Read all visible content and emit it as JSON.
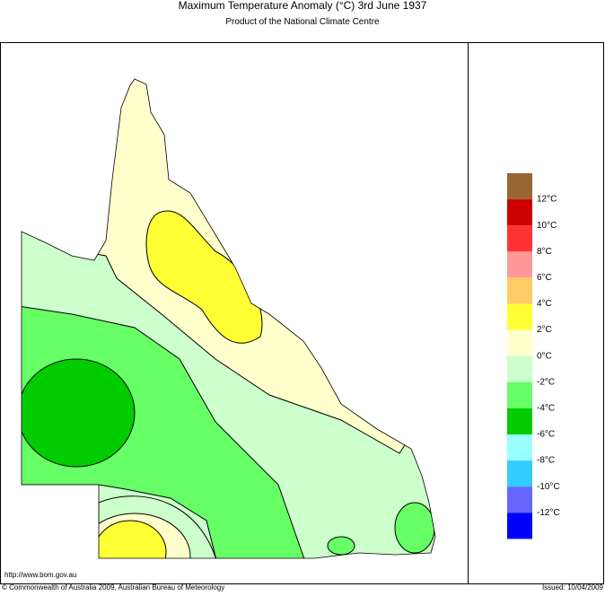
{
  "header": {
    "title": "Maximum Temperature Anomaly (°C)  3rd June 1937",
    "subtitle": "Product of the National Climate Centre"
  },
  "legend": {
    "colors": [
      "#996633",
      "#cc0000",
      "#ff3333",
      "#ff9999",
      "#ffcc66",
      "#ffff33",
      "#ffffcc",
      "#ccffcc",
      "#66ff66",
      "#00cc00",
      "#99ffff",
      "#33ccff",
      "#6666ff",
      "#0000ff"
    ],
    "labels": [
      "12°C",
      "10°C",
      "8°C",
      "6°C",
      "4°C",
      "2°C",
      "0°C",
      "-2°C",
      "-4°C",
      "-6°C",
      "-8°C",
      "-10°C",
      "-12°C"
    ]
  },
  "footer": {
    "url": "http://www.bom.gov.au",
    "copyright": "© Commonwealth of Australia 2009, Australian Bureau of Meteorology",
    "issued": "Issued: 10/04/2009"
  }
}
